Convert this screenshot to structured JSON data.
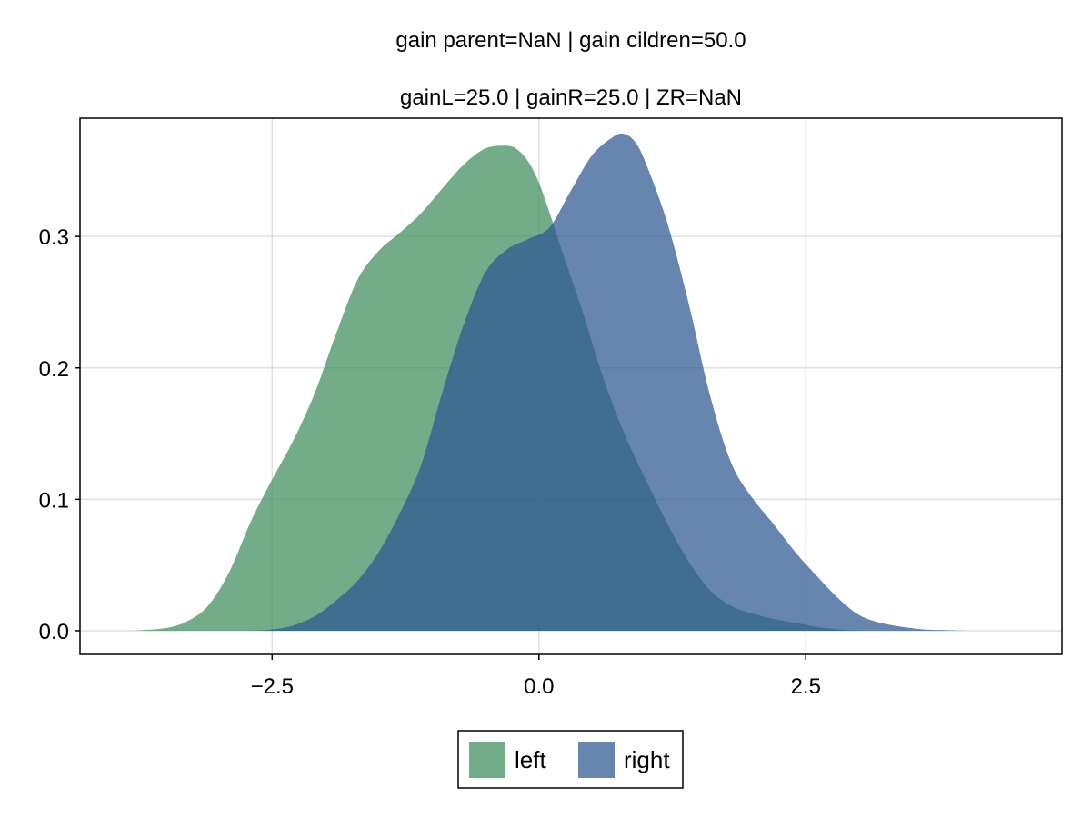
{
  "chart_data": {
    "type": "area",
    "title": "gain parent=NaN | gain cildren=50.0",
    "subtitle": "gainL=25.0 | gainR=25.0 | ZR=NaN",
    "xlabel": "",
    "ylabel": "",
    "xlim": [
      -4.3,
      4.9
    ],
    "ylim": [
      -0.018,
      0.39
    ],
    "xticks": [
      -2.5,
      0.0,
      2.5
    ],
    "xtick_labels": [
      "−2.5",
      "0.0",
      "2.5"
    ],
    "yticks": [
      0.0,
      0.1,
      0.2,
      0.3
    ],
    "ytick_labels": [
      "0.0",
      "0.1",
      "0.2",
      "0.3"
    ],
    "grid": true,
    "legend": {
      "position": "bottom-center",
      "orientation": "horizontal"
    },
    "series": [
      {
        "name": "left",
        "color": "#3c8c5a",
        "x": [
          -3.8,
          -3.5,
          -3.3,
          -3.1,
          -2.9,
          -2.7,
          -2.5,
          -2.3,
          -2.1,
          -1.9,
          -1.7,
          -1.5,
          -1.3,
          -1.1,
          -0.9,
          -0.7,
          -0.5,
          -0.3,
          -0.2,
          -0.1,
          0.0,
          0.1,
          0.2,
          0.4,
          0.6,
          0.8,
          1.0,
          1.2,
          1.4,
          1.6,
          1.8,
          2.0,
          2.2,
          2.4,
          2.6,
          2.8,
          3.0
        ],
        "y": [
          0.0,
          0.002,
          0.007,
          0.019,
          0.045,
          0.083,
          0.115,
          0.145,
          0.181,
          0.226,
          0.267,
          0.289,
          0.303,
          0.318,
          0.337,
          0.355,
          0.367,
          0.369,
          0.366,
          0.357,
          0.341,
          0.318,
          0.293,
          0.245,
          0.193,
          0.15,
          0.115,
          0.082,
          0.053,
          0.031,
          0.019,
          0.013,
          0.009,
          0.006,
          0.003,
          0.001,
          0.0
        ]
      },
      {
        "name": "right",
        "color": "#2b5690",
        "x": [
          -3.1,
          -2.7,
          -2.5,
          -2.3,
          -2.1,
          -1.9,
          -1.7,
          -1.5,
          -1.3,
          -1.1,
          -0.9,
          -0.7,
          -0.5,
          -0.3,
          -0.1,
          0.1,
          0.3,
          0.5,
          0.7,
          0.8,
          0.9,
          1.0,
          1.2,
          1.4,
          1.6,
          1.8,
          2.0,
          2.2,
          2.4,
          2.6,
          2.8,
          3.0,
          3.2,
          3.4,
          3.6,
          3.8,
          4.0,
          4.3
        ],
        "y": [
          0.0,
          0.0,
          0.001,
          0.004,
          0.011,
          0.023,
          0.038,
          0.06,
          0.09,
          0.127,
          0.183,
          0.234,
          0.273,
          0.29,
          0.298,
          0.307,
          0.335,
          0.362,
          0.376,
          0.378,
          0.372,
          0.356,
          0.311,
          0.25,
          0.18,
          0.128,
          0.101,
          0.081,
          0.06,
          0.042,
          0.025,
          0.012,
          0.006,
          0.003,
          0.001,
          0.0005,
          0.0,
          0.0
        ]
      }
    ]
  }
}
